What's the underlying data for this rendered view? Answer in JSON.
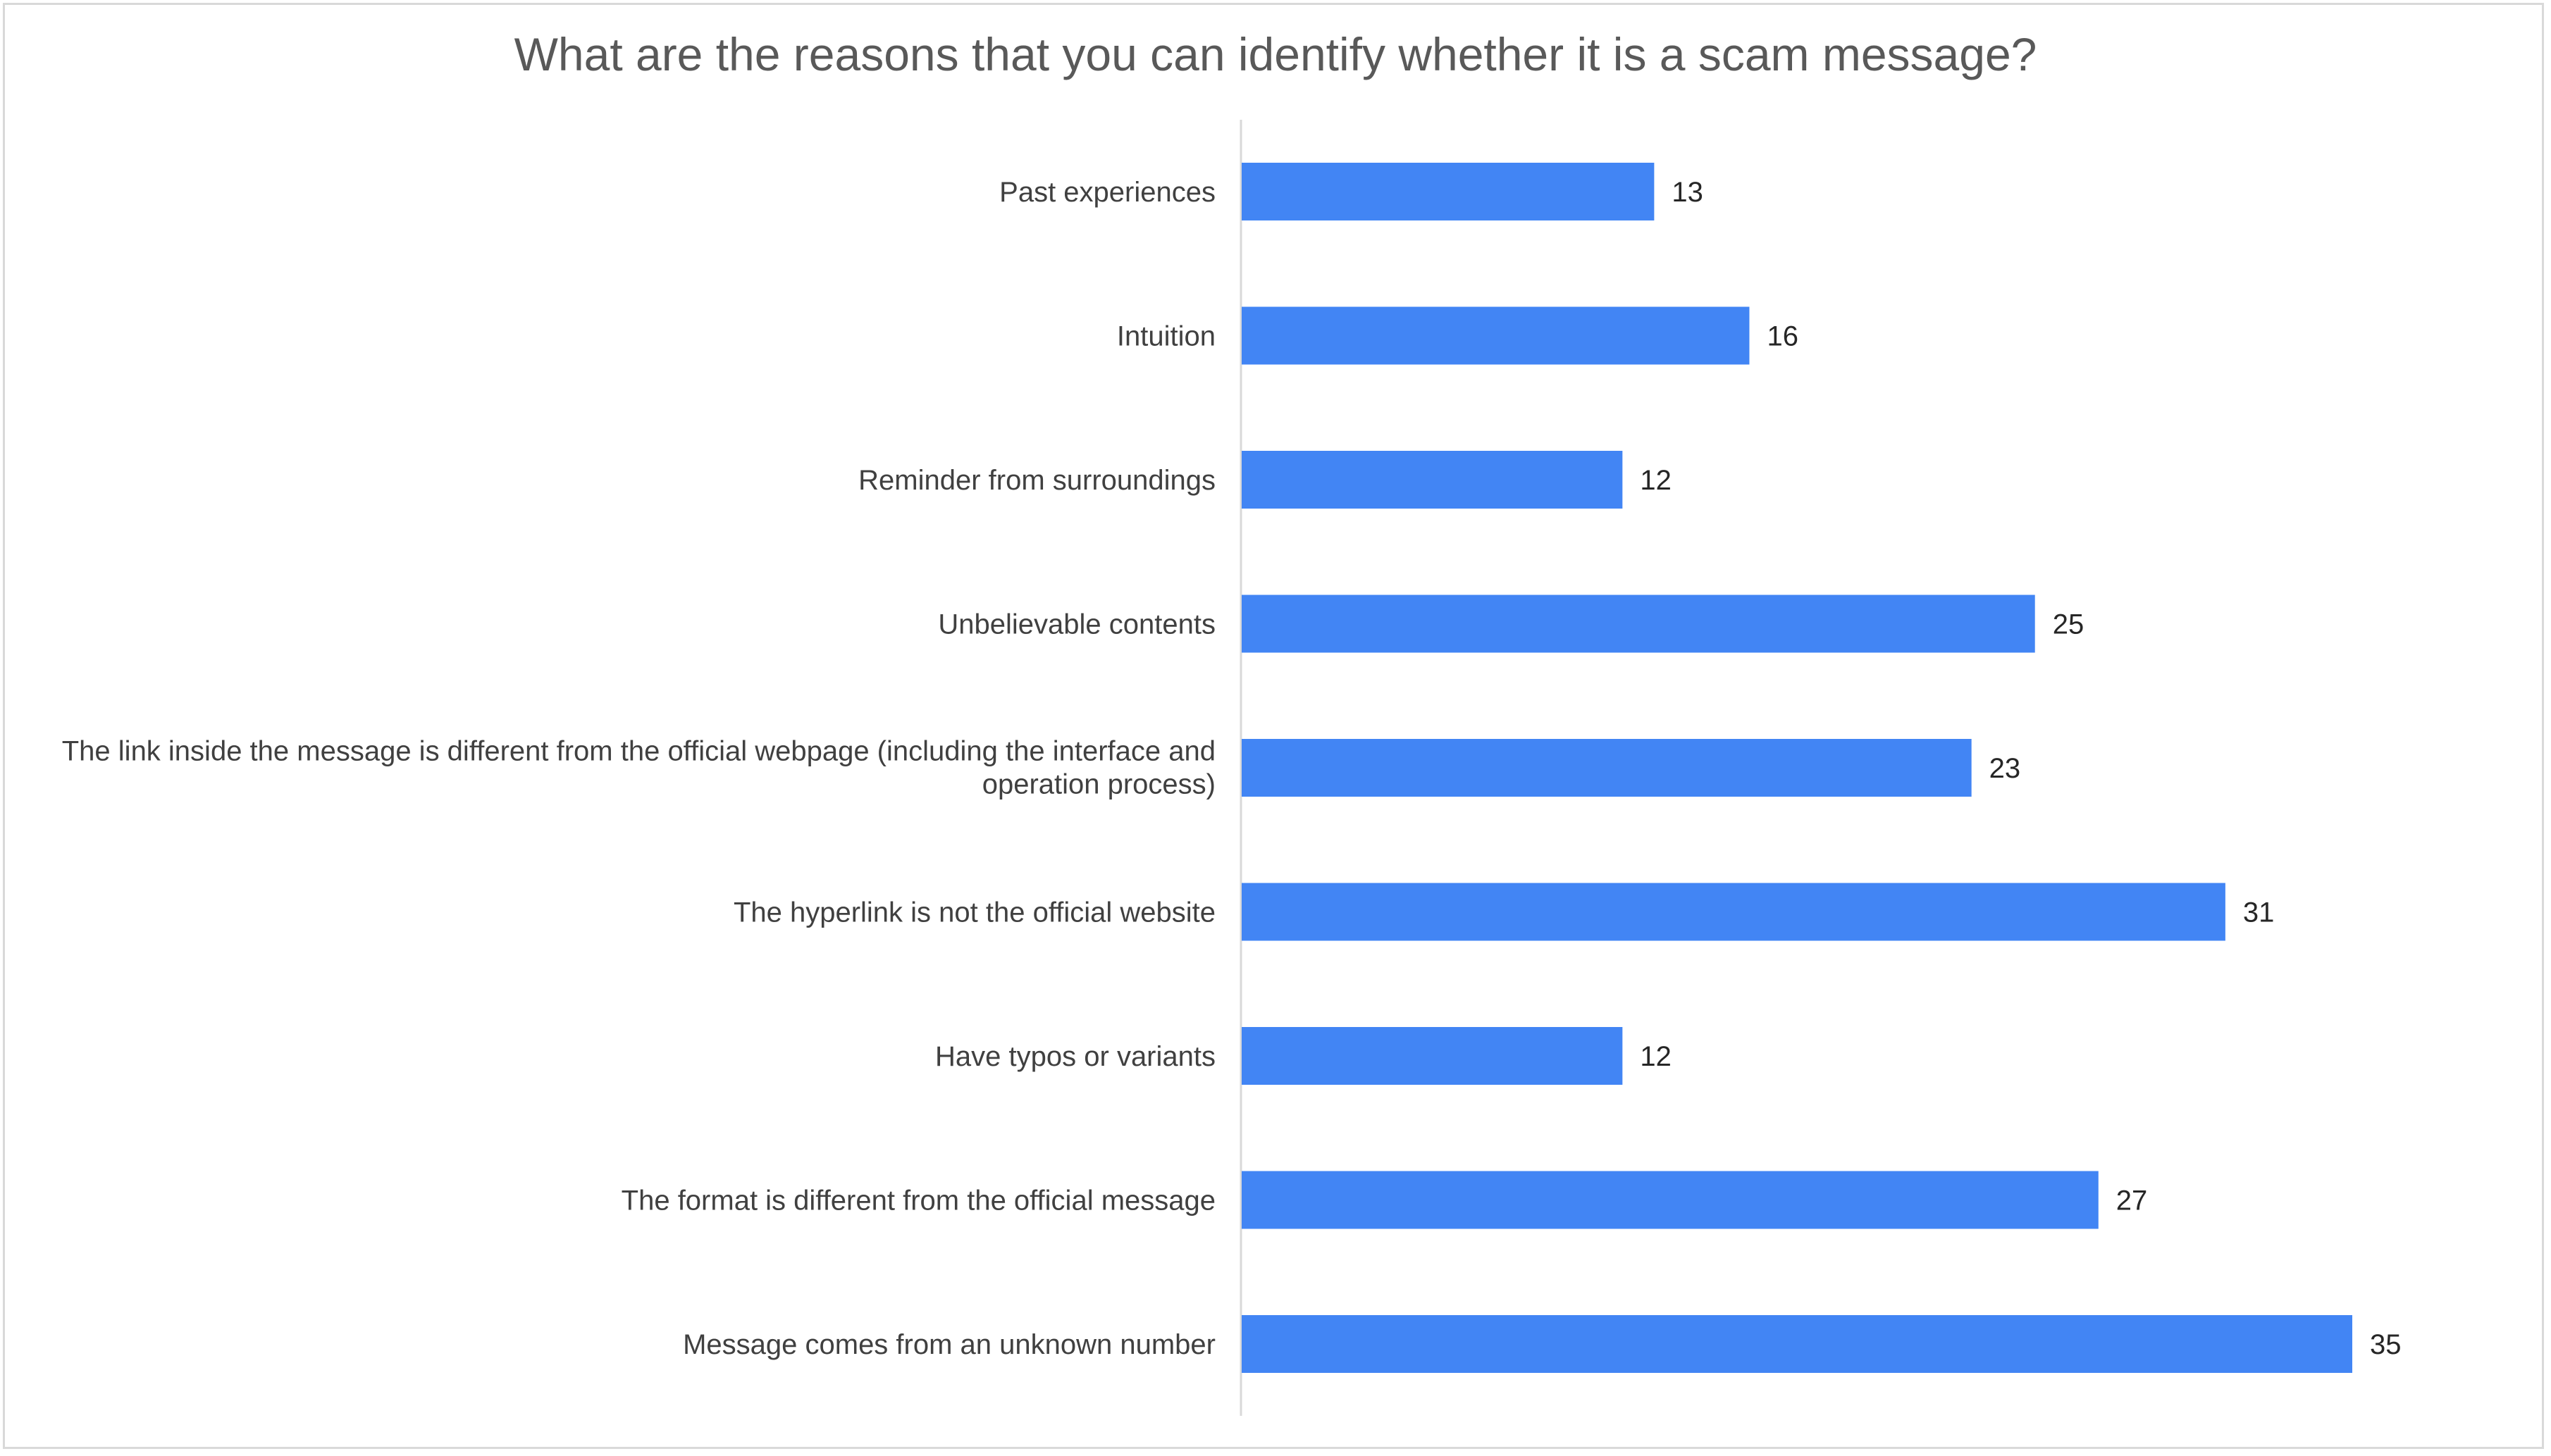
{
  "chart_data": {
    "type": "bar",
    "orientation": "horizontal",
    "title": "What are the reasons that you can identify whether it is a scam message?",
    "categories": [
      "Past experiences",
      "Intuition",
      "Reminder from surroundings",
      "Unbelievable contents",
      "The link inside the message is different from the official webpage (including the interface and operation process)",
      "The hyperlink is not the official website",
      "Have typos or variants",
      "The format is different from the official message",
      "Message comes from an unknown number"
    ],
    "category_lines": [
      [
        "Past experiences"
      ],
      [
        "Intuition"
      ],
      [
        "Reminder from surroundings"
      ],
      [
        "Unbelievable contents"
      ],
      [
        "The link inside the message is different from the official webpage (including the interface and",
        "operation process)"
      ],
      [
        "The hyperlink is not the official website"
      ],
      [
        "Have typos or variants"
      ],
      [
        "The format is different from the official message"
      ],
      [
        "Message comes from an unknown number"
      ]
    ],
    "values": [
      13,
      16,
      12,
      25,
      23,
      31,
      12,
      27,
      35
    ],
    "xlim": [
      0,
      35
    ],
    "grid": false,
    "legend": "none",
    "data_labels": true,
    "bar_color": "#4285F4",
    "axis_color": "#d9d9d9"
  }
}
